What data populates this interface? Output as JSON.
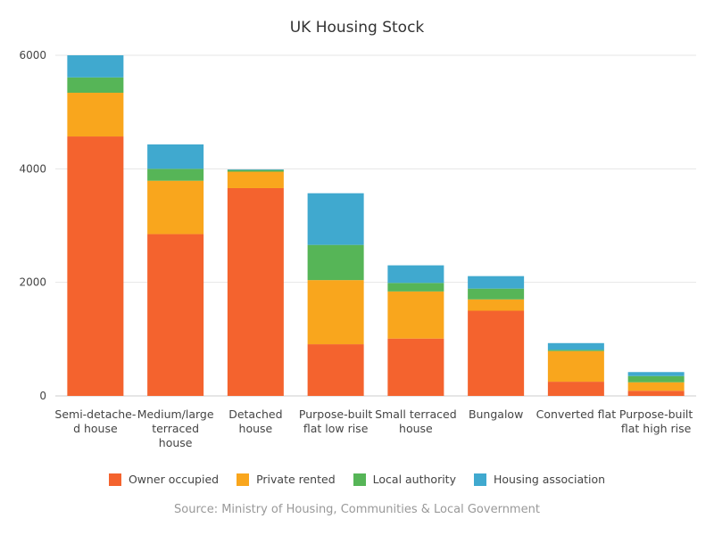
{
  "chart_data": {
    "type": "bar",
    "stacked": true,
    "title": "UK Housing Stock",
    "source": "Source: Ministry of Housing, Communities & Local Government",
    "xlabel": "",
    "ylabel": "",
    "ylim": [
      0,
      6000
    ],
    "yticks": [
      0,
      2000,
      4000,
      6000
    ],
    "grid": true,
    "legend_position": "bottom",
    "categories": [
      [
        "Semi-detache-",
        "d house"
      ],
      [
        "Medium/large",
        "terraced",
        "house"
      ],
      [
        "Detached",
        "house"
      ],
      [
        "Purpose-built",
        "flat low rise"
      ],
      [
        "Small terraced",
        "house"
      ],
      [
        "Bungalow"
      ],
      [
        "Converted flat"
      ],
      [
        "Purpose-built",
        "flat high rise"
      ]
    ],
    "series": [
      {
        "name": "Owner occupied",
        "color": "#f4632e",
        "values": [
          4570,
          2850,
          3660,
          910,
          1010,
          1500,
          250,
          90
        ]
      },
      {
        "name": "Private rented",
        "color": "#f9a61d",
        "values": [
          770,
          940,
          290,
          1130,
          830,
          200,
          540,
          150
        ]
      },
      {
        "name": "Local authority",
        "color": "#56b557",
        "values": [
          270,
          210,
          30,
          620,
          150,
          190,
          20,
          110
        ]
      },
      {
        "name": "Housing association",
        "color": "#40a9cf",
        "values": [
          390,
          430,
          10,
          910,
          310,
          220,
          120,
          70
        ]
      }
    ]
  }
}
